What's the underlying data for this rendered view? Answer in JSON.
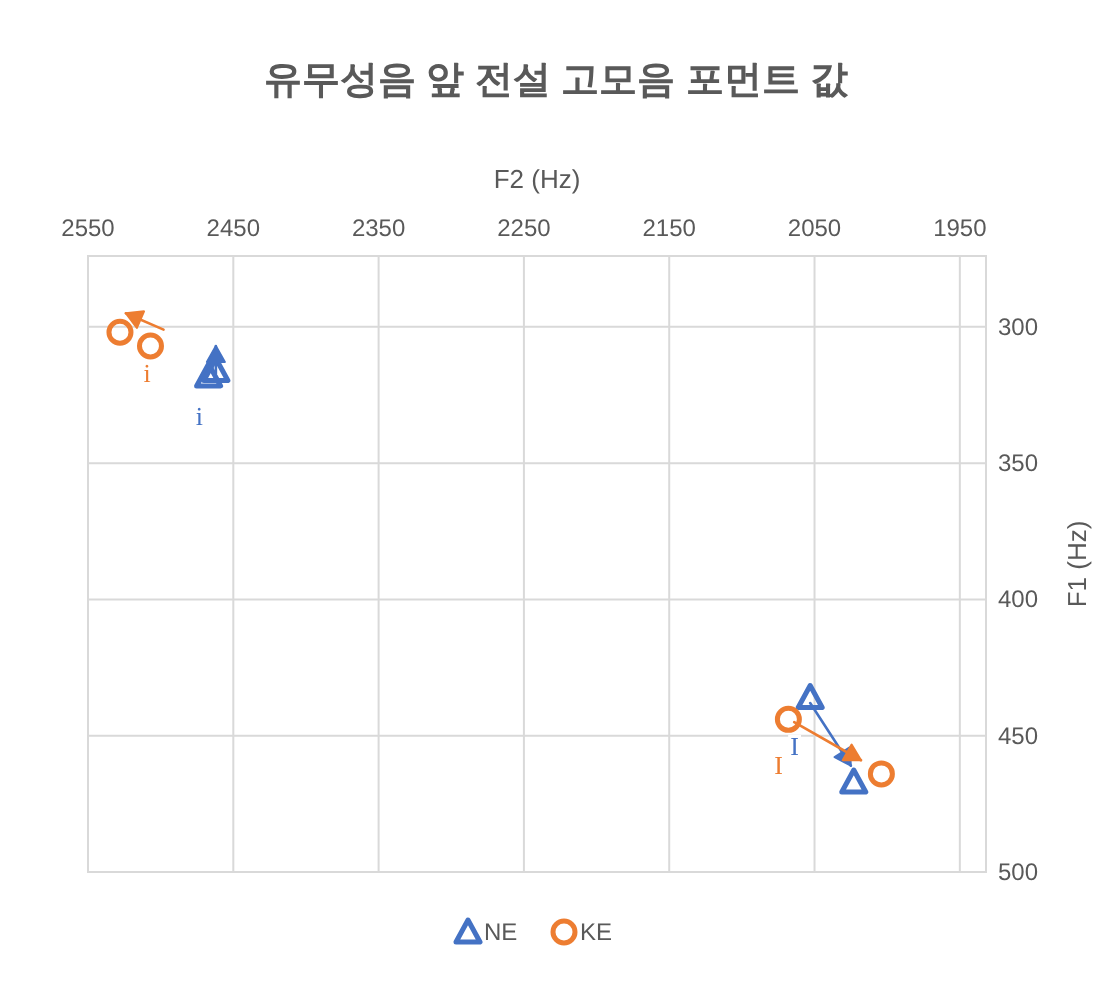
{
  "chart_data": {
    "type": "scatter",
    "title": "유무성음 앞 전설 고모음 포먼트 값",
    "xlabel": "F2 (Hz)",
    "ylabel": "F1 (Hz)",
    "xlim": [
      2550,
      1932
    ],
    "xticks": [
      2550,
      2450,
      2350,
      2250,
      2150,
      2050,
      1950
    ],
    "ylim": [
      500,
      274
    ],
    "yticks": [
      300,
      350,
      400,
      450,
      500
    ],
    "grid": true,
    "legend": "bottom",
    "series": [
      {
        "name": "NE",
        "color": "#4472c4",
        "marker": "triangle",
        "x": [
          2467,
          2462,
          2053,
          2023
        ],
        "values": [
          318,
          316,
          436,
          467
        ]
      },
      {
        "name": "KE",
        "color": "#ed7d31",
        "marker": "circle",
        "x": [
          2528,
          2507,
          2068,
          2004
        ],
        "values": [
          302,
          307,
          444,
          464
        ]
      },
      {
        "type": "line",
        "color": "#4472c4",
        "marker": "none",
        "x": [
          2462,
          2462
        ],
        "values": [
          317,
          307
        ],
        "value_labels": [
          "i",
          null
        ]
      },
      {
        "type": "line",
        "color": "#ed7d31",
        "marker": "none",
        "x": [
          2498,
          2524
        ],
        "values": [
          301,
          295
        ],
        "value_labels": [
          "i",
          null
        ]
      },
      {
        "type": "line",
        "color": "#4472c4",
        "marker": "none",
        "x": [
          2053,
          2025
        ],
        "values": [
          438,
          461
        ],
        "value_labels": [
          "I",
          null
        ]
      },
      {
        "type": "line",
        "color": "#ed7d31",
        "marker": "none",
        "x": [
          2064,
          2018
        ],
        "values": [
          445,
          459
        ],
        "value_labels": [
          "I",
          null
        ]
      }
    ]
  }
}
